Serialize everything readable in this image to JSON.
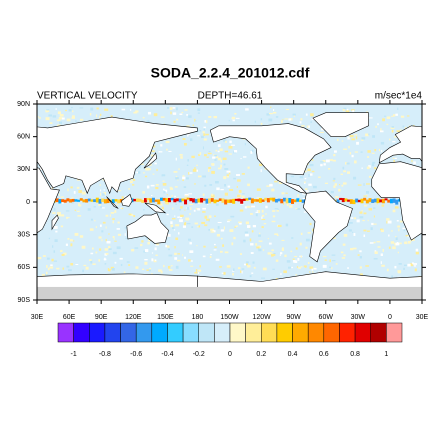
{
  "title": "SODA_2.2.4_201012.cdf",
  "left_string": "VERTICAL VELOCITY",
  "center_string": "DEPTH=46.61",
  "right_string": "m/sec*1e4",
  "lon_labels": [
    "30E",
    "60E",
    "90E",
    "120E",
    "150E",
    "180",
    "150W",
    "120W",
    "90W",
    "60W",
    "30W",
    "0",
    "30E"
  ],
  "lat_labels": [
    "90N",
    "60N",
    "30N",
    "0",
    "30S",
    "60S",
    "90S"
  ],
  "colorbar": {
    "colors": [
      "#9933ff",
      "#3300ff",
      "#1a1aff",
      "#2244ee",
      "#3366e6",
      "#3399ee",
      "#00aaff",
      "#33ccff",
      "#88ddff",
      "#bfe6f7",
      "#d6eefa",
      "#fff8c8",
      "#ffee99",
      "#ffdd55",
      "#ffcc00",
      "#ffaa00",
      "#ff8800",
      "#ff6600",
      "#ff2200",
      "#e00000",
      "#b00000",
      "#ff9999"
    ],
    "labels": [
      -1,
      -0.8,
      -0.6,
      -0.4,
      -0.2,
      0,
      0.2,
      0.4,
      0.6,
      0.8,
      1
    ]
  }
}
